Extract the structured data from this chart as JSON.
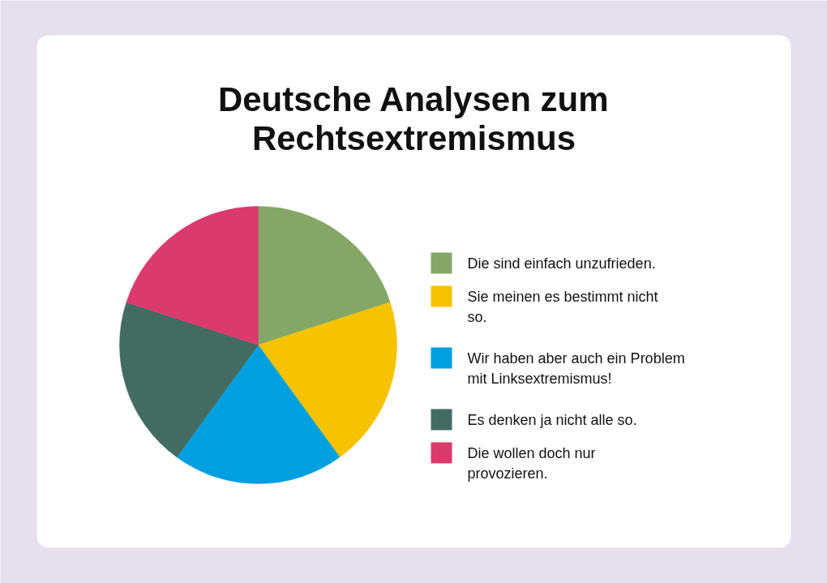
{
  "chart_data": {
    "type": "pie",
    "title": "Deutsche Analysen zum Rechtsextremismus",
    "categories": [
      "Die sind einfach unzufrieden.",
      "Sie meinen es bestimmt nicht so.",
      "Wir haben aber auch ein Problem mit Linksextremismus!",
      "Es denken ja nicht alle so.",
      "Die wollen doch nur provozieren."
    ],
    "values": [
      20,
      20,
      20,
      20,
      20
    ],
    "colors": [
      "#84a666",
      "#f7c200",
      "#009fe0",
      "#436b62",
      "#db3a6e"
    ],
    "legend": "right"
  }
}
